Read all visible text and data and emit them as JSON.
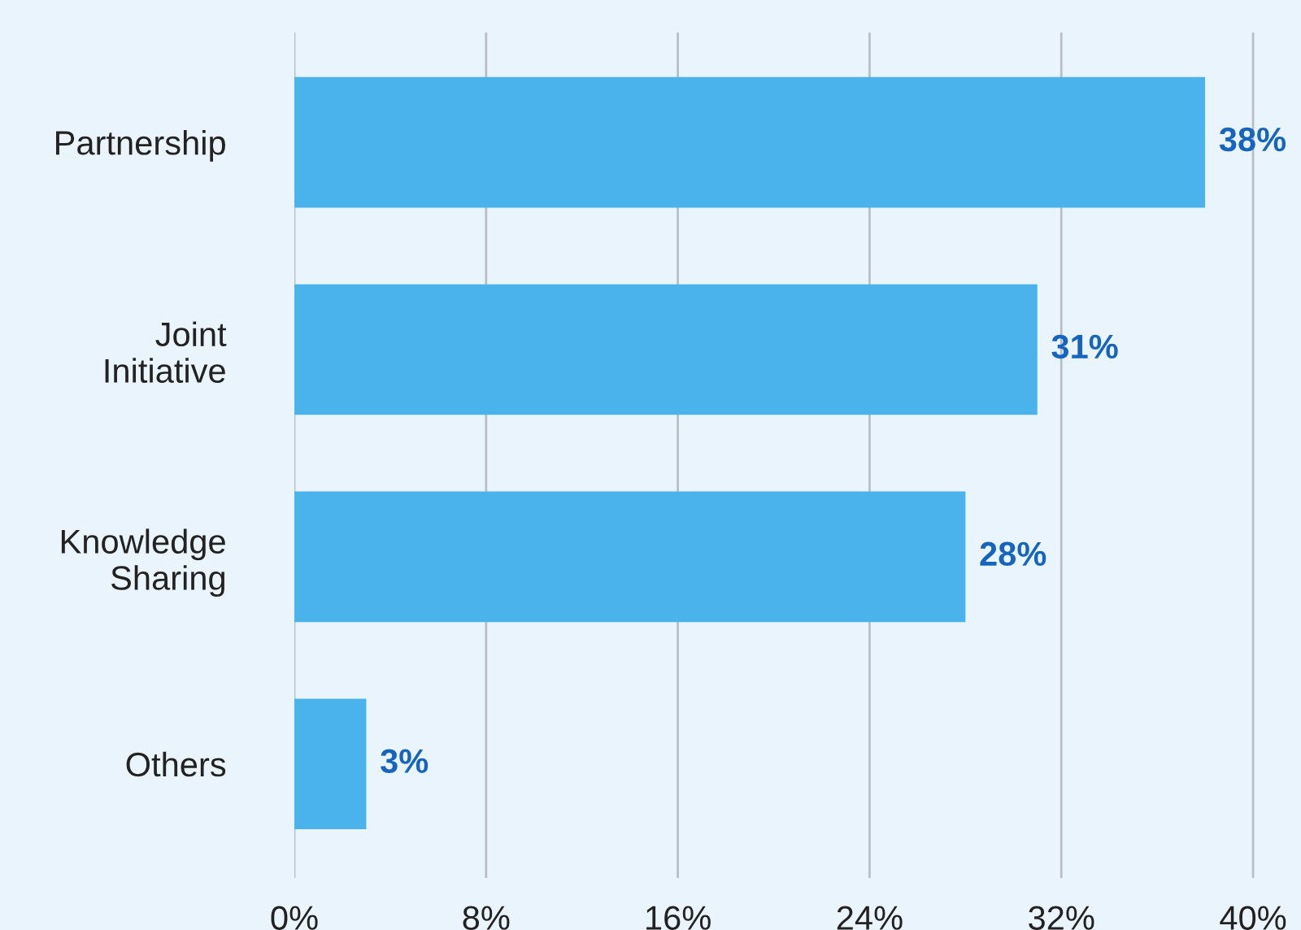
{
  "chart_data": {
    "type": "bar",
    "orientation": "horizontal",
    "categories": [
      "Partnership",
      "Joint\nInitiative",
      "Knowledge\nSharing",
      "Others"
    ],
    "values": [
      38,
      31,
      28,
      3
    ],
    "color": "#4ab3ec",
    "value_labels": [
      "38%",
      "31%",
      "28%",
      "3%"
    ],
    "xlim": [
      0,
      42
    ],
    "xticks": [
      {
        "value": 0,
        "label": "0%"
      },
      {
        "value": 8,
        "label": "8%"
      },
      {
        "value": 16,
        "label": "16%"
      },
      {
        "value": 24,
        "label": "24%"
      },
      {
        "value": 32,
        "label": "32%"
      },
      {
        "value": 40,
        "label": "40%"
      }
    ],
    "grid": "x"
  }
}
